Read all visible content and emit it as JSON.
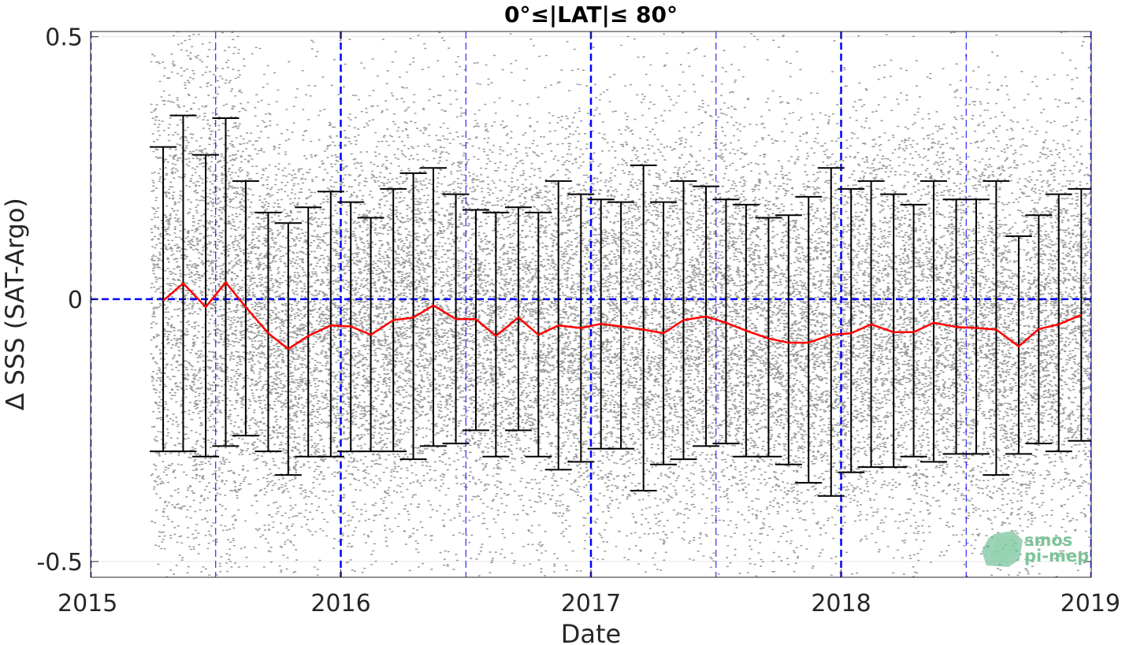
{
  "chart_data": {
    "type": "scatter",
    "title": "0°≤|LAT|≤ 80°",
    "xlabel": "Date",
    "ylabel": "∆ SSS (SAT-Argo)",
    "xlim": [
      2015.0,
      2019.0
    ],
    "ylim": [
      -0.53,
      0.51
    ],
    "x_ticks": [
      2015,
      2016,
      2017,
      2018,
      2019
    ],
    "x_tick_labels": [
      "2015",
      "2016",
      "2017",
      "2018",
      "2019"
    ],
    "y_ticks": [
      -0.5,
      0,
      0.5
    ],
    "y_tick_labels": [
      "-0.5",
      "0",
      "0.5"
    ],
    "grid": true,
    "colors": {
      "scatter": "#808080",
      "mean_line": "#ff0000",
      "error_bars": "#000000",
      "reference_lines": "#0000ff",
      "logo": "#4caf7d"
    },
    "scatter_cloud": {
      "name": "",
      "x_start": 2015.24,
      "x_end": 2019.0,
      "center": -0.05,
      "spread": 0.2
    },
    "series": [
      {
        "name": "",
        "style": "mean-with-error-bars",
        "x": [
          2015.29,
          2015.37,
          2015.46,
          2015.54,
          2015.62,
          2015.71,
          2015.79,
          2015.87,
          2015.96,
          2016.04,
          2016.12,
          2016.21,
          2016.29,
          2016.37,
          2016.46,
          2016.54,
          2016.62,
          2016.71,
          2016.79,
          2016.87,
          2016.96,
          2017.04,
          2017.12,
          2017.21,
          2017.29,
          2017.37,
          2017.46,
          2017.54,
          2017.62,
          2017.71,
          2017.79,
          2017.87,
          2017.96,
          2018.04,
          2018.12,
          2018.21,
          2018.29,
          2018.37,
          2018.46,
          2018.54,
          2018.62,
          2018.71,
          2018.79,
          2018.87,
          2018.96
        ],
        "mean": [
          -0.003,
          0.03,
          -0.015,
          0.032,
          -0.015,
          -0.065,
          -0.095,
          -0.07,
          -0.05,
          -0.052,
          -0.068,
          -0.04,
          -0.035,
          -0.012,
          -0.038,
          -0.038,
          -0.07,
          -0.035,
          -0.068,
          -0.05,
          -0.055,
          -0.047,
          -0.052,
          -0.058,
          -0.065,
          -0.04,
          -0.033,
          -0.045,
          -0.06,
          -0.075,
          -0.083,
          -0.083,
          -0.068,
          -0.065,
          -0.048,
          -0.063,
          -0.063,
          -0.045,
          -0.053,
          -0.055,
          -0.058,
          -0.09,
          -0.057,
          -0.048,
          -0.03
        ],
        "upper": [
          0.29,
          0.35,
          0.275,
          0.345,
          0.225,
          0.165,
          0.145,
          0.175,
          0.205,
          0.185,
          0.155,
          0.21,
          0.24,
          0.25,
          0.2,
          0.17,
          0.165,
          0.175,
          0.165,
          0.225,
          0.2,
          0.19,
          0.185,
          0.255,
          0.185,
          0.225,
          0.215,
          0.19,
          0.18,
          0.155,
          0.16,
          0.195,
          0.25,
          0.21,
          0.225,
          0.2,
          0.18,
          0.225,
          0.19,
          0.19,
          0.225,
          0.12,
          0.16,
          0.2,
          0.21
        ],
        "lower": [
          -0.29,
          -0.29,
          -0.3,
          -0.28,
          -0.26,
          -0.29,
          -0.335,
          -0.3,
          -0.3,
          -0.29,
          -0.29,
          -0.29,
          -0.305,
          -0.28,
          -0.275,
          -0.25,
          -0.3,
          -0.25,
          -0.3,
          -0.325,
          -0.31,
          -0.285,
          -0.285,
          -0.365,
          -0.315,
          -0.305,
          -0.28,
          -0.275,
          -0.3,
          -0.3,
          -0.315,
          -0.35,
          -0.375,
          -0.33,
          -0.32,
          -0.32,
          -0.3,
          -0.31,
          -0.295,
          -0.295,
          -0.335,
          -0.295,
          -0.275,
          -0.29,
          -0.27
        ]
      }
    ],
    "reference_lines": {
      "horizontal_y": [
        0
      ],
      "vertical_major_x": [
        2015.0,
        2016.0,
        2017.0,
        2018.0,
        2019.0
      ],
      "vertical_minor_x": [
        2015.5,
        2016.5,
        2017.5,
        2018.5
      ]
    },
    "annotations": [
      {
        "text": "smos",
        "role": "logo"
      },
      {
        "text": "pi-mep",
        "role": "logo"
      }
    ]
  }
}
